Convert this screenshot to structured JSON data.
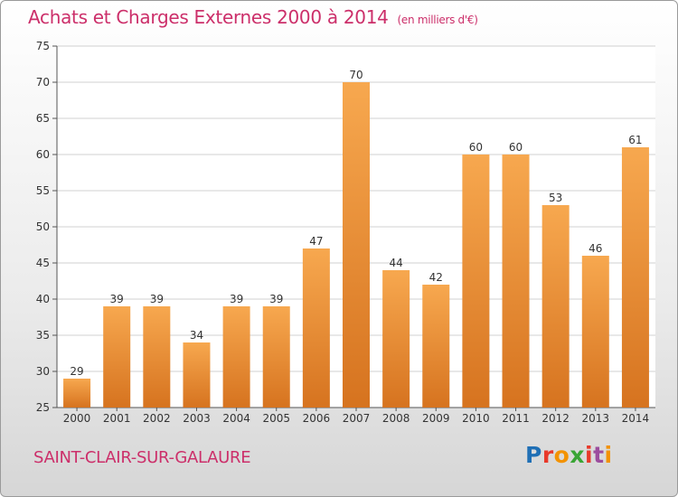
{
  "title": "Achats et Charges Externes 2000 à 2014",
  "unit_note": "(en milliers d'€)",
  "commune": "SAINT-CLAIR-SUR-GALAURE",
  "logo": {
    "text": "Proxiti",
    "letter_colors": [
      "#1f6fb5",
      "#e8392a",
      "#f39200",
      "#3aa535",
      "#e8392a",
      "#9c4d9e",
      "#f39200"
    ]
  },
  "colors": {
    "bar_top": "#f7a84f",
    "bar_bottom": "#d6731f",
    "grid": "#d0d0d0",
    "axis_text": "#333333"
  },
  "chart_data": {
    "type": "bar",
    "categories": [
      "2000",
      "2001",
      "2002",
      "2003",
      "2004",
      "2005",
      "2006",
      "2007",
      "2008",
      "2009",
      "2010",
      "2011",
      "2012",
      "2013",
      "2014"
    ],
    "values": [
      29,
      39,
      39,
      34,
      39,
      39,
      47,
      70,
      44,
      42,
      60,
      60,
      53,
      46,
      61
    ],
    "y_ticks": [
      25,
      30,
      35,
      40,
      45,
      50,
      55,
      60,
      65,
      70,
      75
    ],
    "ylim": [
      25,
      75
    ],
    "grid": true,
    "legend": "none"
  }
}
